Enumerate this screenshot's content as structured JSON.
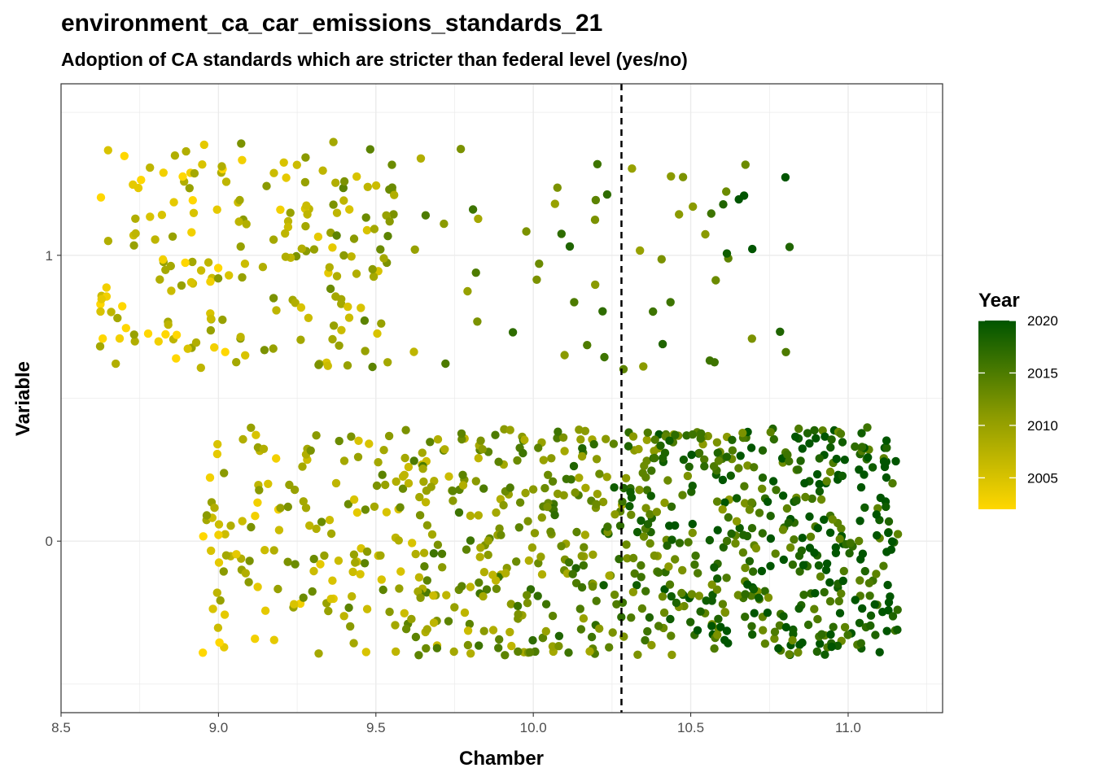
{
  "chart_data": {
    "type": "scatter",
    "title": "environment_ca_car_emissions_standards_21",
    "subtitle": "Adoption of CA standards which are stricter than federal level (yes/no)",
    "xlabel": "Chamber",
    "ylabel": "Variable",
    "xlim": [
      8.5,
      11.3
    ],
    "ylim": [
      -0.6,
      1.6
    ],
    "x_ticks": [
      "8.5",
      "9.0",
      "9.5",
      "10.0",
      "10.5",
      "11.0"
    ],
    "y_ticks": [
      "0",
      "1"
    ],
    "reference_line_x": 10.28,
    "grid": true,
    "legend": {
      "title": "Year",
      "position": "right",
      "labels": [
        "2020",
        "2015",
        "2010",
        "2005"
      ],
      "range": [
        2002,
        2020
      ]
    },
    "colors": {
      "low": "#ffd700",
      "mid": "#8a9a00",
      "high": "#005500",
      "axis_text": "#4d4d4d",
      "grid": "#ebebeb"
    },
    "groups": [
      {
        "value": 1,
        "x_range": [
          8.62,
          9.56
        ],
        "n": 200
      },
      {
        "value": 1,
        "x_range": [
          9.56,
          10.28
        ],
        "n": 30
      },
      {
        "value": 1,
        "x_range": [
          10.28,
          10.85
        ],
        "n": 30
      },
      {
        "value": 0,
        "x_range": [
          8.95,
          9.56
        ],
        "n": 130
      },
      {
        "value": 0,
        "x_range": [
          9.56,
          10.28
        ],
        "n": 280
      },
      {
        "value": 0,
        "x_range": [
          10.28,
          11.16
        ],
        "n": 470
      }
    ],
    "jitter_y": 0.4
  }
}
